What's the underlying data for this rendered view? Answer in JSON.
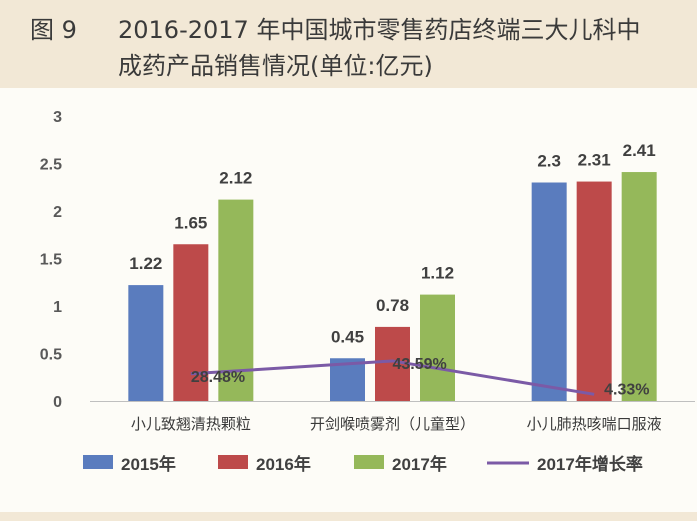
{
  "figure": {
    "label": "图 9",
    "title_line1": "2016-2017 年中国城市零售药店终端三大儿科中",
    "title_line2": "成药产品销售情况(单位:亿元)"
  },
  "chart_data": {
    "type": "bar",
    "title": "2016-2017 年中国城市零售药店终端三大儿科中成药产品销售情况(单位:亿元)",
    "categories": [
      "小儿致翘清热颗粒",
      "开剑喉喷雾剂（儿童型）",
      "小儿肺热咳喘口服液"
    ],
    "series": [
      {
        "name": "2015年",
        "values": [
          1.22,
          0.45,
          2.3
        ],
        "labels": [
          "1.22",
          "0.45",
          "2.3"
        ],
        "color": "#5a7cbe"
      },
      {
        "name": "2016年",
        "values": [
          1.65,
          0.78,
          2.31
        ],
        "labels": [
          "1.65",
          "0.78",
          "2.31"
        ],
        "color": "#bd4a4a"
      },
      {
        "name": "2017年",
        "values": [
          2.12,
          1.12,
          2.41
        ],
        "labels": [
          "2.12",
          "1.12",
          "2.41"
        ],
        "color": "#95b85a"
      }
    ],
    "growth_series": {
      "name": "2017年增长率",
      "values": [
        28.48,
        43.59,
        4.33
      ],
      "labels": [
        "28.48%",
        "43.59%",
        "4.33%"
      ],
      "color": "#7b5aa6"
    },
    "ylim": [
      0,
      3
    ],
    "yticks": [
      "0",
      "0.5",
      "1",
      "1.5",
      "2",
      "2.5",
      "3"
    ],
    "grid": false,
    "legend_position": "bottom"
  }
}
